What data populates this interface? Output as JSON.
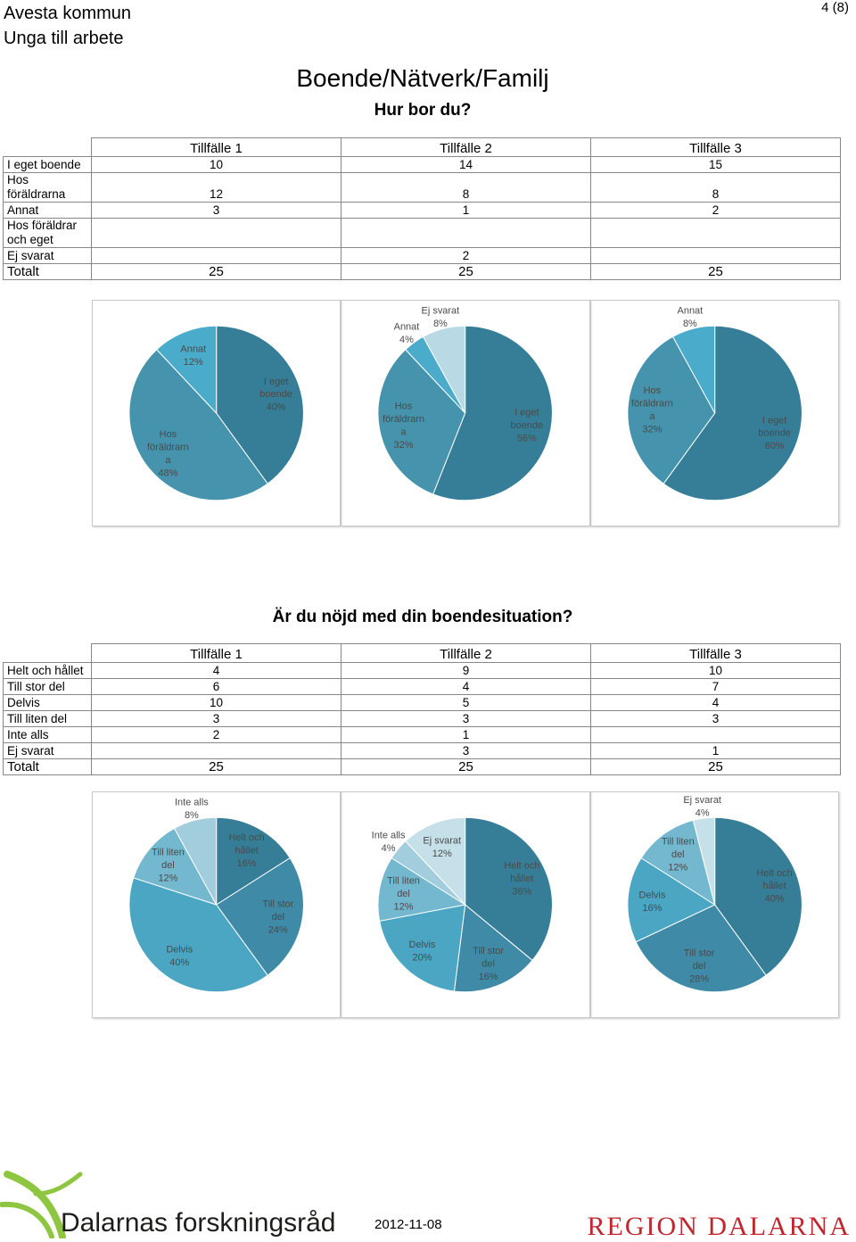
{
  "header": {
    "org": "Avesta kommun",
    "project": "Unga till arbete",
    "page": "4 (8)"
  },
  "section_title": "Boende/Nätverk/Familj",
  "q1": {
    "question": "Hur bor du?",
    "columns": [
      "Tillfälle 1",
      "Tillfälle 2",
      "Tillfälle 3"
    ],
    "rows": [
      {
        "label": "I eget boende",
        "values": [
          "10",
          "14",
          "15"
        ]
      },
      {
        "label": "Hos föräldrarna",
        "values": [
          "12",
          "8",
          "8"
        ]
      },
      {
        "label": "Annat",
        "values": [
          "3",
          "1",
          "2"
        ]
      },
      {
        "label": "Hos föräldrar\noch eget",
        "values": [
          "",
          "",
          ""
        ]
      },
      {
        "label": "Ej svarat",
        "values": [
          "",
          "2",
          ""
        ]
      }
    ],
    "total": {
      "label": "Totalt",
      "values": [
        "25",
        "25",
        "25"
      ]
    }
  },
  "q2": {
    "question": "Är du nöjd med din boendesituation?",
    "columns": [
      "Tillfälle 1",
      "Tillfälle 2",
      "Tillfälle 3"
    ],
    "rows": [
      {
        "label": "Helt och hållet",
        "values": [
          "4",
          "9",
          "10"
        ]
      },
      {
        "label": "Till stor del",
        "values": [
          "6",
          "4",
          "7"
        ]
      },
      {
        "label": "Delvis",
        "values": [
          "10",
          "5",
          "4"
        ]
      },
      {
        "label": "Till liten del",
        "values": [
          "3",
          "3",
          "3"
        ]
      },
      {
        "label": "Inte alls",
        "values": [
          "2",
          "1",
          ""
        ]
      },
      {
        "label": "Ej svarat",
        "values": [
          "",
          "3",
          "1"
        ]
      }
    ],
    "total": {
      "label": "Totalt",
      "values": [
        "25",
        "25",
        "25"
      ]
    }
  },
  "chart_data": [
    {
      "type": "pie",
      "slices": [
        {
          "lines": [
            "I eget",
            "boende",
            "40%"
          ],
          "value": 40,
          "color": "#367e97"
        },
        {
          "lines": [
            "Hos",
            "föräldrarn",
            "a",
            "48%"
          ],
          "value": 48,
          "color": "#4593ac"
        },
        {
          "lines": [
            "Annat",
            "12%"
          ],
          "value": 12,
          "color": "#4aabca"
        }
      ]
    },
    {
      "type": "pie",
      "slices": [
        {
          "lines": [
            "I eget",
            "boende",
            "56%"
          ],
          "value": 56,
          "color": "#367e97"
        },
        {
          "lines": [
            "Hos",
            "föräldrarn",
            "a",
            "32%"
          ],
          "value": 32,
          "color": "#4593ac"
        },
        {
          "lines": [
            "Annat",
            "4%"
          ],
          "value": 4,
          "color": "#4aabca"
        },
        {
          "lines": [
            "Ej svarat",
            "8%"
          ],
          "value": 8,
          "color": "#b9d9e4"
        }
      ]
    },
    {
      "type": "pie",
      "slices": [
        {
          "lines": [
            "I eget",
            "boende",
            "60%"
          ],
          "value": 60,
          "color": "#367e97"
        },
        {
          "lines": [
            "Hos",
            "föräldrarn",
            "a",
            "32%"
          ],
          "value": 32,
          "color": "#4593ac"
        },
        {
          "lines": [
            "Annat",
            "8%"
          ],
          "value": 8,
          "color": "#4aabca"
        }
      ]
    },
    {
      "type": "pie",
      "slices": [
        {
          "lines": [
            "Helt och",
            "hållet",
            "16%"
          ],
          "value": 16,
          "color": "#367e97"
        },
        {
          "lines": [
            "Till stor",
            "del",
            "24%"
          ],
          "value": 24,
          "color": "#3f8aa6"
        },
        {
          "lines": [
            "Delvis",
            "40%"
          ],
          "value": 40,
          "color": "#4aa6c3"
        },
        {
          "lines": [
            "Till liten",
            "del",
            "12%"
          ],
          "value": 12,
          "color": "#73b8cf"
        },
        {
          "lines": [
            "Inte alls",
            "8%"
          ],
          "value": 8,
          "color": "#a2cddc"
        }
      ]
    },
    {
      "type": "pie",
      "slices": [
        {
          "lines": [
            "Helt och",
            "hållet",
            "36%"
          ],
          "value": 36,
          "color": "#367e97"
        },
        {
          "lines": [
            "Till stor",
            "del",
            "16%"
          ],
          "value": 16,
          "color": "#3f8aa6"
        },
        {
          "lines": [
            "Delvis",
            "20%"
          ],
          "value": 20,
          "color": "#4aa6c3"
        },
        {
          "lines": [
            "Till liten",
            "del",
            "12%"
          ],
          "value": 12,
          "color": "#73b8cf"
        },
        {
          "lines": [
            "Inte alls",
            "4%"
          ],
          "value": 4,
          "color": "#a2cddc"
        },
        {
          "lines": [
            "Ej svarat",
            "12%"
          ],
          "value": 12,
          "color": "#c6e0ea"
        }
      ]
    },
    {
      "type": "pie",
      "slices": [
        {
          "lines": [
            "Helt och",
            "hållet",
            "40%"
          ],
          "value": 40,
          "color": "#367e97"
        },
        {
          "lines": [
            "Till stor",
            "del",
            "28%"
          ],
          "value": 28,
          "color": "#3f8aa6"
        },
        {
          "lines": [
            "Delvis",
            "16%"
          ],
          "value": 16,
          "color": "#4aa6c3"
        },
        {
          "lines": [
            "Till liten",
            "del",
            "12%"
          ],
          "value": 12,
          "color": "#73b8cf"
        },
        {
          "lines": [
            "Ej svarat",
            "4%"
          ],
          "value": 4,
          "color": "#c6e0ea"
        }
      ]
    }
  ],
  "footer": {
    "logo_text": "Dalarnas forskningsråd",
    "date": "2012-11-08",
    "region": "REGION DALARNA"
  }
}
